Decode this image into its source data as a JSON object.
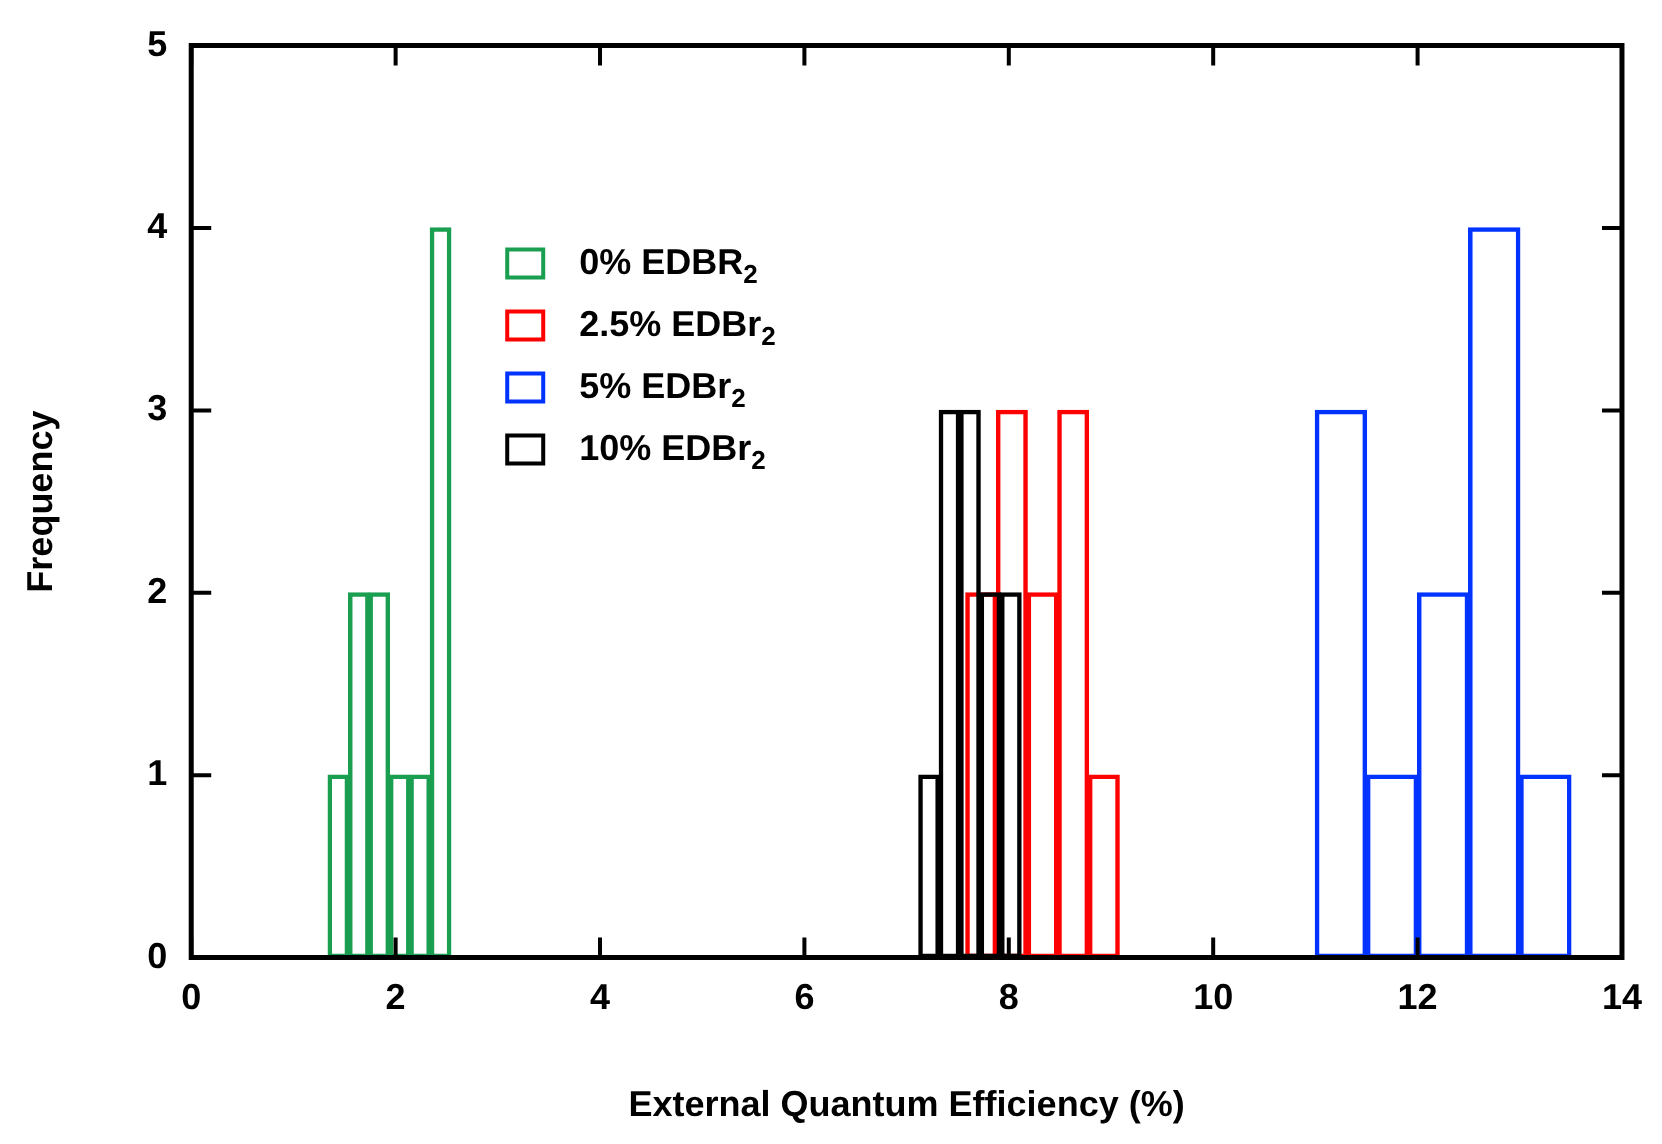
{
  "chart_data": {
    "type": "bar",
    "xlabel": "External Quantum Efficiency (%)",
    "ylabel": "Frequency",
    "xlim": [
      0,
      14
    ],
    "xticks": [
      0,
      2,
      4,
      6,
      8,
      10,
      12,
      14
    ],
    "ylim": [
      0,
      5
    ],
    "yticks": [
      0,
      1,
      2,
      3,
      4,
      5
    ],
    "grid": false,
    "legend": "top left",
    "series": [
      {
        "name": "0% EDBR$_{2}$",
        "color": "#1a9e50",
        "x": [
          1.44,
          1.64,
          1.84,
          2.04,
          2.24,
          2.44
        ],
        "values": [
          1,
          2,
          2,
          1,
          1,
          4
        ]
      },
      {
        "name": "2.5% EDBr$_{2}$",
        "color": "#ff0000",
        "x": [
          7.73,
          8.03,
          8.33,
          8.63,
          8.93
        ],
        "values": [
          2,
          3,
          2,
          3,
          1
        ]
      },
      {
        "name": "5% EDBr$_{2}$",
        "color": "#0033ff",
        "x": [
          11.25,
          11.75,
          12.25,
          12.75,
          13.25
        ],
        "values": [
          3,
          1,
          2,
          4,
          1
        ]
      },
      {
        "name": "10% EDBr$_{2}$",
        "color": "#000000",
        "x": [
          7.22,
          7.42,
          7.62,
          7.82,
          8.02
        ],
        "values": [
          1,
          3,
          3,
          2,
          2
        ]
      }
    ]
  }
}
